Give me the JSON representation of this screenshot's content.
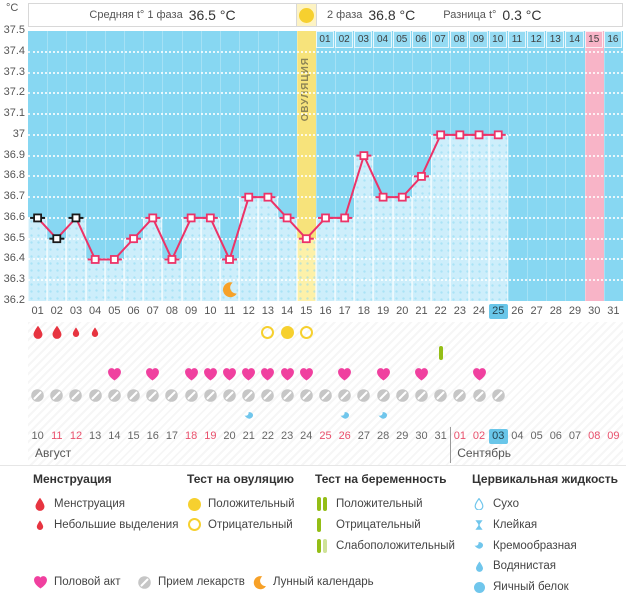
{
  "header": {
    "phase1_label": "Средняя t° 1 фаза",
    "phase1_value": "36.5 °C",
    "phase2_label": "2 фаза",
    "phase2_value": "36.8 °C",
    "diff_label": "Разница t°",
    "diff_value": "0.3 °C",
    "ovulation_label": "ОВУЛЯЦИЯ"
  },
  "chart_data": {
    "type": "line",
    "title": "Basal body temperature cycle chart",
    "ylabel": "°C",
    "ylim": [
      36.2,
      37.5
    ],
    "ytick_step": 0.1,
    "yticks": [
      "37.5",
      "37.4",
      "37.3",
      "37.2",
      "37.1",
      "37",
      "36.9",
      "36.8",
      "36.7",
      "36.6",
      "36.5",
      "36.4",
      "36.3",
      "36.2"
    ],
    "grid": "dotted-white-horizontal",
    "x_cycle_days": [
      "01",
      "02",
      "03",
      "04",
      "05",
      "06",
      "07",
      "08",
      "09",
      "10",
      "11",
      "12",
      "13",
      "14",
      "15",
      "16",
      "17",
      "18",
      "19",
      "20",
      "21",
      "22",
      "23",
      "24",
      "25",
      "26",
      "27",
      "28",
      "29",
      "30",
      "31"
    ],
    "phase2_day_labels": [
      "01",
      "02",
      "03",
      "04",
      "05",
      "06",
      "07",
      "08",
      "09",
      "10",
      "11",
      "12",
      "13",
      "14",
      "15",
      "16"
    ],
    "series": [
      {
        "name": "temperature",
        "points": [
          {
            "day": 1,
            "t": 36.6,
            "marker": "excluded"
          },
          {
            "day": 2,
            "t": 36.5,
            "marker": "excluded"
          },
          {
            "day": 3,
            "t": 36.6,
            "marker": "excluded"
          },
          {
            "day": 4,
            "t": 36.4,
            "marker": "normal"
          },
          {
            "day": 5,
            "t": 36.4,
            "marker": "normal"
          },
          {
            "day": 6,
            "t": 36.5,
            "marker": "normal"
          },
          {
            "day": 7,
            "t": 36.6,
            "marker": "normal"
          },
          {
            "day": 8,
            "t": 36.4,
            "marker": "normal"
          },
          {
            "day": 9,
            "t": 36.6,
            "marker": "normal"
          },
          {
            "day": 10,
            "t": 36.6,
            "marker": "normal"
          },
          {
            "day": 11,
            "t": 36.4,
            "marker": "normal"
          },
          {
            "day": 12,
            "t": 36.7,
            "marker": "normal"
          },
          {
            "day": 13,
            "t": 36.7,
            "marker": "normal"
          },
          {
            "day": 14,
            "t": 36.6,
            "marker": "normal"
          },
          {
            "day": 15,
            "t": 36.5,
            "marker": "normal"
          },
          {
            "day": 16,
            "t": 36.6,
            "marker": "normal"
          },
          {
            "day": 17,
            "t": 36.6,
            "marker": "normal"
          },
          {
            "day": 18,
            "t": 36.9,
            "marker": "normal"
          },
          {
            "day": 19,
            "t": 36.7,
            "marker": "normal"
          },
          {
            "day": 20,
            "t": 36.7,
            "marker": "normal"
          },
          {
            "day": 21,
            "t": 36.8,
            "marker": "normal"
          },
          {
            "day": 22,
            "t": 37.0,
            "marker": "normal"
          },
          {
            "day": 23,
            "t": 37.0,
            "marker": "normal"
          },
          {
            "day": 24,
            "t": 37.0,
            "marker": "normal"
          },
          {
            "day": 25,
            "t": 37.0,
            "marker": "normal"
          }
        ]
      }
    ],
    "ovulation_day": 15,
    "expected_period_cycle_day": 30,
    "current_cycle_day": 25,
    "moon_day": 11
  },
  "daily": {
    "menstruation": [
      {
        "day": 1,
        "size": "large"
      },
      {
        "day": 2,
        "size": "large"
      },
      {
        "day": 3,
        "size": "small"
      },
      {
        "day": 4,
        "size": "small"
      }
    ],
    "ovulation_tests": [
      {
        "day": 13,
        "result": "negative"
      },
      {
        "day": 14,
        "result": "positive"
      },
      {
        "day": 15,
        "result": "negative"
      }
    ],
    "pregnancy_tests": [
      {
        "day": 22,
        "result": "negative"
      }
    ],
    "intercourse_days": [
      5,
      7,
      9,
      10,
      11,
      12,
      13,
      14,
      15,
      17,
      19,
      21,
      24
    ],
    "medication_days": [
      1,
      2,
      3,
      4,
      5,
      6,
      7,
      8,
      9,
      10,
      11,
      12,
      13,
      14,
      15,
      16,
      17,
      18,
      19,
      20,
      21,
      22,
      23,
      24,
      25
    ],
    "cervical_fluid": [
      {
        "day": 12,
        "type": "creamy"
      },
      {
        "day": 17,
        "type": "creamy"
      },
      {
        "day": 19,
        "type": "creamy"
      }
    ]
  },
  "calendar": {
    "dates": [
      "10",
      "11",
      "12",
      "13",
      "14",
      "15",
      "16",
      "17",
      "18",
      "19",
      "20",
      "21",
      "22",
      "23",
      "24",
      "25",
      "26",
      "27",
      "28",
      "29",
      "30",
      "31",
      "01",
      "02",
      "03",
      "04",
      "05",
      "06",
      "07",
      "08",
      "09"
    ],
    "weekend_indices": [
      1,
      2,
      8,
      9,
      15,
      16,
      22,
      23,
      29,
      30
    ],
    "today_index": 24,
    "months": [
      {
        "label": "Август",
        "at_index": 0
      },
      {
        "label": "Сентябрь",
        "at_index": 22
      }
    ]
  },
  "legend": {
    "sections": [
      {
        "title": "Менструация",
        "items": [
          {
            "icon": "drop-large",
            "label": "Менструация"
          },
          {
            "icon": "drop-small",
            "label": "Небольшие выделения"
          }
        ]
      },
      {
        "title": "Тест на овуляцию",
        "items": [
          {
            "icon": "circle-filled",
            "label": "Положительный"
          },
          {
            "icon": "circle-outline",
            "label": "Отрицательный"
          }
        ]
      },
      {
        "title": "Тест на беременность",
        "items": [
          {
            "icon": "bars-2",
            "label": "Положительный"
          },
          {
            "icon": "bar-1",
            "label": "Отрицательный"
          },
          {
            "icon": "bars-weak",
            "label": "Слабоположительный"
          }
        ]
      },
      {
        "title": "Цервикальная жидкость",
        "items": [
          {
            "icon": "cf-dry",
            "label": "Сухо"
          },
          {
            "icon": "cf-sticky",
            "label": "Клейкая"
          },
          {
            "icon": "cf-creamy",
            "label": "Кремообразная"
          },
          {
            "icon": "cf-watery",
            "label": "Водянистая"
          },
          {
            "icon": "cf-eggwhite",
            "label": "Яичный белок"
          }
        ]
      }
    ],
    "footer": [
      {
        "icon": "heart",
        "label": "Половой акт"
      },
      {
        "icon": "pill",
        "label": "Прием лекарств"
      },
      {
        "icon": "moon",
        "label": "Лунный календарь"
      }
    ]
  },
  "colors": {
    "accent_line": "#ec3368",
    "marker_excluded": "#1a1a1a",
    "chart_bg": "#87d7f2",
    "bar_fill": "#cdeefb",
    "ovulation_band": "#f7e37b",
    "ovulation_bar": "#fdf1a9",
    "ovulation_text": "#8d8455",
    "period_band": "#f8b4c7",
    "today_highlight": "#69c6e9",
    "weekend_red": "#e9506c",
    "menstruation_red": "#e73440",
    "test_yellow": "#f6d02f",
    "pregnancy_green": "#94be16",
    "pregnancy_green_light": "#cfe298",
    "cervical_blue": "#70c6ec",
    "moon_orange": "#f7a128",
    "medication_gray": "#c6c6c6",
    "intercourse_pink": "#f0409f"
  }
}
